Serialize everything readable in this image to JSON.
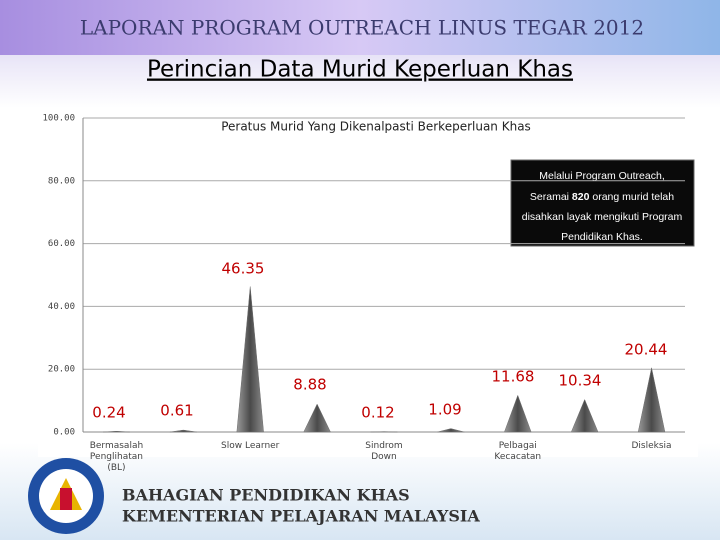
{
  "header": {
    "banner": "LAPORAN PROGRAM OUTREACH LINUS TEGAR 2012",
    "title": "Perincian Data Murid Keperluan Khas"
  },
  "chart_data": {
    "type": "bar",
    "title": "Peratus Murid Yang Dikenalpasti Berkeperluan Khas",
    "categories": [
      "Bermasalah Penglihatan (BL)",
      null,
      "Slow Learner",
      null,
      "Sindrom Down",
      null,
      "Pelbagai Kecacatan",
      null,
      "Disleksia"
    ],
    "values": [
      0.24,
      0.61,
      46.35,
      8.88,
      0.12,
      1.09,
      11.68,
      10.34,
      20.44
    ],
    "color": "#6e6e6e",
    "ylim": [
      0,
      100
    ],
    "yticks": [
      {
        "value": 0,
        "label": "0.00"
      },
      {
        "value": 20,
        "label": "20.00"
      },
      {
        "value": 40,
        "label": "40.00"
      },
      {
        "value": 60,
        "label": "60.00"
      },
      {
        "value": 80,
        "label": "80.00"
      },
      {
        "value": 100,
        "label": "100.00"
      }
    ],
    "grid": true,
    "annotation": [
      "Melalui Program Outreach,",
      "Seramai",
      "820",
      "orang murid telah",
      "disahkan layak mengikuti Program",
      "Pendidikan Khas."
    ]
  },
  "footer": {
    "line1": "BAHAGIAN PENDIDIKAN KHAS",
    "line2": "KEMENTERIAN PELAJARAN MALAYSIA"
  }
}
